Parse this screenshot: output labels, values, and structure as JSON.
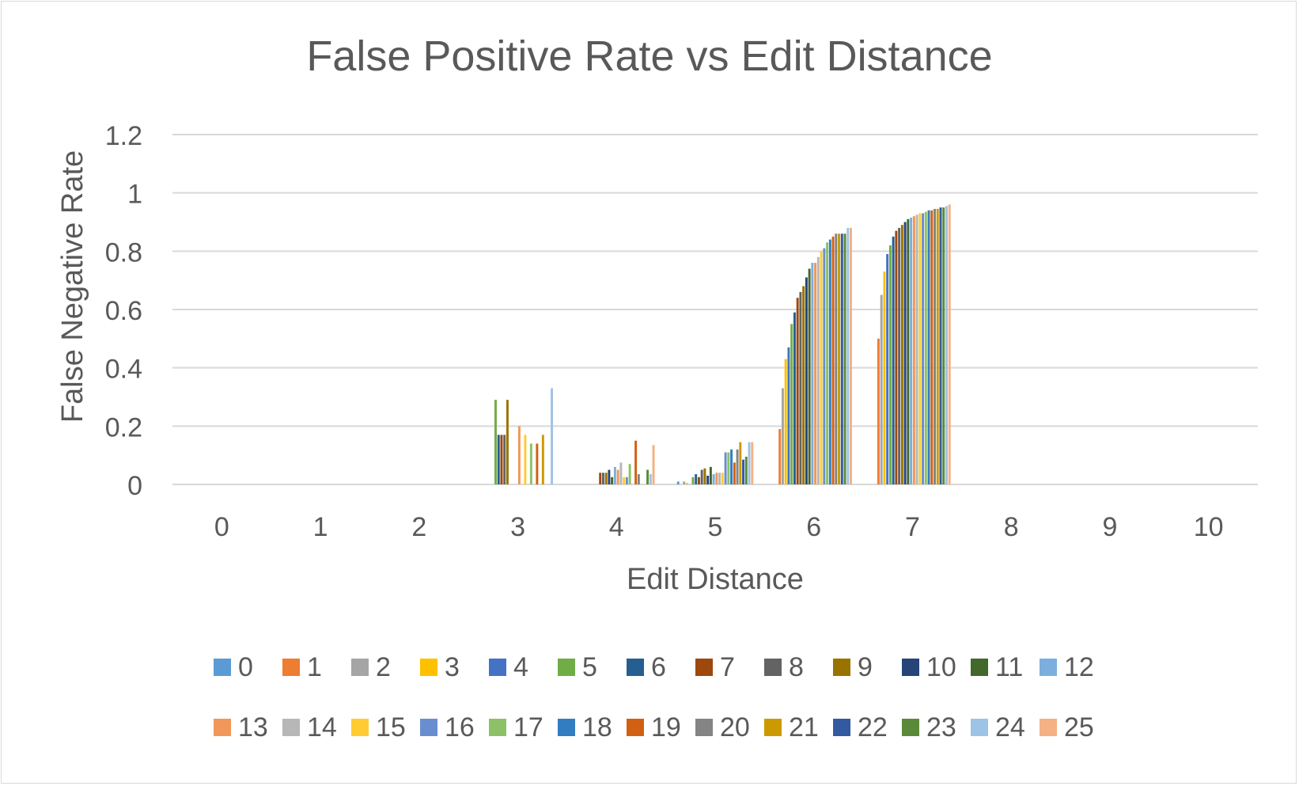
{
  "chart_data": {
    "type": "bar",
    "title": "False Positive Rate vs Edit Distance",
    "xlabel": "Edit Distance",
    "ylabel": "False Negative Rate",
    "ylim": [
      0,
      1.2
    ],
    "yticks": [
      "0",
      "0.2",
      "0.4",
      "0.6",
      "0.8",
      "1",
      "1.2"
    ],
    "categories": [
      "0",
      "1",
      "2",
      "3",
      "4",
      "5",
      "6",
      "7",
      "8",
      "9",
      "10"
    ],
    "grid": true,
    "legend_position": "bottom",
    "series": [
      {
        "name": "0",
        "color": "#5B9BD5",
        "values": [
          0,
          0,
          0,
          0,
          0,
          0.01,
          0,
          0,
          0,
          0,
          0
        ]
      },
      {
        "name": "1",
        "color": "#ED7D31",
        "values": [
          0,
          0,
          0,
          0,
          0,
          0,
          0.19,
          0.5,
          0,
          0,
          0
        ]
      },
      {
        "name": "2",
        "color": "#A5A5A5",
        "values": [
          0,
          0,
          0,
          0,
          0,
          0.01,
          0.33,
          0.65,
          0,
          0,
          0
        ]
      },
      {
        "name": "3",
        "color": "#FFC000",
        "values": [
          0,
          0,
          0,
          0,
          0,
          0.005,
          0.43,
          0.73,
          0,
          0,
          0
        ]
      },
      {
        "name": "4",
        "color": "#4472C4",
        "values": [
          0,
          0,
          0,
          0,
          0,
          0,
          0.47,
          0.79,
          0,
          0,
          0
        ]
      },
      {
        "name": "5",
        "color": "#70AD47",
        "values": [
          0,
          0,
          0,
          0.29,
          0,
          0.025,
          0.55,
          0.82,
          0,
          0,
          0
        ]
      },
      {
        "name": "6",
        "color": "#255E91",
        "values": [
          0,
          0,
          0,
          0.17,
          0,
          0.035,
          0.59,
          0.85,
          0,
          0,
          0
        ]
      },
      {
        "name": "7",
        "color": "#9E480E",
        "values": [
          0,
          0,
          0,
          0.17,
          0.04,
          0.025,
          0.64,
          0.87,
          0,
          0,
          0
        ]
      },
      {
        "name": "8",
        "color": "#636363",
        "values": [
          0,
          0,
          0,
          0.17,
          0.04,
          0.05,
          0.66,
          0.88,
          0,
          0,
          0
        ]
      },
      {
        "name": "9",
        "color": "#997300",
        "values": [
          0,
          0,
          0,
          0.29,
          0.04,
          0.055,
          0.68,
          0.89,
          0,
          0,
          0
        ]
      },
      {
        "name": "10",
        "color": "#264478",
        "values": [
          0,
          0,
          0,
          0,
          0.05,
          0.03,
          0.71,
          0.9,
          0,
          0,
          0
        ]
      },
      {
        "name": "11",
        "color": "#43682B",
        "values": [
          0,
          0,
          0,
          0,
          0.025,
          0.06,
          0.74,
          0.91,
          0,
          0,
          0
        ]
      },
      {
        "name": "12",
        "color": "#7CAFDD",
        "values": [
          0,
          0,
          0,
          0,
          0.06,
          0.035,
          0.76,
          0.915,
          0,
          0,
          0
        ]
      },
      {
        "name": "13",
        "color": "#F1975A",
        "values": [
          0,
          0,
          0,
          0.2,
          0.05,
          0.04,
          0.76,
          0.92,
          0,
          0,
          0
        ]
      },
      {
        "name": "14",
        "color": "#B7B7B7",
        "values": [
          0,
          0,
          0,
          0,
          0.075,
          0.04,
          0.78,
          0.925,
          0,
          0,
          0
        ]
      },
      {
        "name": "15",
        "color": "#FFCD33",
        "values": [
          0,
          0,
          0,
          0.17,
          0.025,
          0.04,
          0.8,
          0.93,
          0,
          0,
          0
        ]
      },
      {
        "name": "16",
        "color": "#698ED0",
        "values": [
          0,
          0,
          0,
          0,
          0.025,
          0.11,
          0.81,
          0.93,
          0,
          0,
          0
        ]
      },
      {
        "name": "17",
        "color": "#8CC168",
        "values": [
          0,
          0,
          0,
          0.14,
          0.07,
          0.11,
          0.83,
          0.935,
          0,
          0,
          0
        ]
      },
      {
        "name": "18",
        "color": "#327DC2",
        "values": [
          0,
          0,
          0,
          0,
          0,
          0.12,
          0.84,
          0.94,
          0,
          0,
          0
        ]
      },
      {
        "name": "19",
        "color": "#D26012",
        "values": [
          0,
          0,
          0,
          0.14,
          0.15,
          0.075,
          0.85,
          0.94,
          0,
          0,
          0
        ]
      },
      {
        "name": "20",
        "color": "#848484",
        "values": [
          0,
          0,
          0,
          0,
          0.035,
          0.12,
          0.86,
          0.945,
          0,
          0,
          0
        ]
      },
      {
        "name": "21",
        "color": "#CC9A00",
        "values": [
          0,
          0,
          0,
          0.17,
          0,
          0.145,
          0.86,
          0.945,
          0,
          0,
          0
        ]
      },
      {
        "name": "22",
        "color": "#335AA1",
        "values": [
          0,
          0,
          0,
          0,
          0,
          0.085,
          0.86,
          0.95,
          0,
          0,
          0
        ]
      },
      {
        "name": "23",
        "color": "#5A8A39",
        "values": [
          0,
          0,
          0,
          0,
          0.05,
          0.095,
          0.86,
          0.95,
          0,
          0,
          0
        ]
      },
      {
        "name": "24",
        "color": "#9DC3E6",
        "values": [
          0,
          0,
          0,
          0.33,
          0.035,
          0.145,
          0.88,
          0.955,
          0,
          0,
          0
        ]
      },
      {
        "name": "25",
        "color": "#F4B183",
        "values": [
          0,
          0,
          0,
          0,
          0.135,
          0.145,
          0.88,
          0.96,
          0,
          0,
          0
        ]
      }
    ]
  }
}
